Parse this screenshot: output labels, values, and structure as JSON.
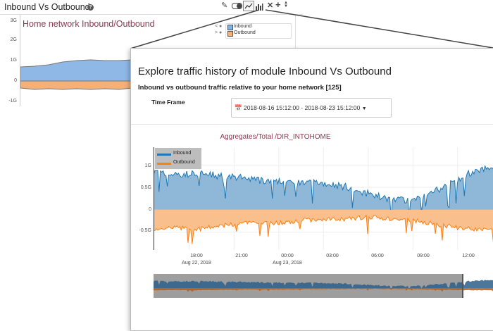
{
  "widget": {
    "title": "Inbound Vs Outbound",
    "toolbar_icons": [
      "pencil-icon",
      "toggle-icon",
      "line-chart-icon",
      "bar-chart-icon",
      "close-icon",
      "plus-icon",
      "sort-icon"
    ]
  },
  "background_chart": {
    "title": "Home network Inbound/Outbound",
    "y_ticks": [
      "3G",
      "2G",
      "1G",
      "0",
      "-1G"
    ],
    "legend": [
      {
        "name": "Inbound",
        "color": "#7fb3e6"
      },
      {
        "name": "Outbound",
        "color": "#f5b077"
      }
    ]
  },
  "overlay": {
    "title": "Explore traffic history of module Inbound Vs Outbound",
    "subtitle": "Inbound vs outbound traffic relative to your home network [125]",
    "time_frame_label": "Time Frame",
    "time_frame_value": "2018-08-16 15:12:00 - 2018-08-23 15:12:00",
    "chart_title": "Aggregates/Total /DIR_INTOHOME"
  },
  "chart_data": {
    "type": "area",
    "title": "Aggregates/Total /DIR_INTOHOME",
    "y_ticks": [
      "1G",
      "0.5G",
      "0",
      "-0.5G"
    ],
    "x_ticks": [
      {
        "label": "18:00",
        "sub": "Aug 22, 2018"
      },
      {
        "label": "21:00",
        "sub": ""
      },
      {
        "label": "00:00",
        "sub": "Aug 23, 2018"
      },
      {
        "label": "03:00",
        "sub": ""
      },
      {
        "label": "06:00",
        "sub": ""
      },
      {
        "label": "09:00",
        "sub": ""
      },
      {
        "label": "12:00",
        "sub": ""
      }
    ],
    "series": [
      {
        "name": "Inbound",
        "color": "#1f77b4",
        "fill": "#8fb8d8"
      },
      {
        "name": "Outbound",
        "color": "#ff7f0e",
        "fill": "#f9c08e"
      }
    ],
    "inbound_profile": [
      0.85,
      0.8,
      0.78,
      0.8,
      0.82,
      0.8,
      0.76,
      0.74,
      0.72,
      0.68,
      0.66,
      0.64,
      0.62,
      0.6,
      0.6,
      0.62,
      0.58,
      0.55,
      0.5,
      0.42,
      0.35,
      0.28,
      0.24,
      0.22,
      0.26,
      0.32,
      0.42,
      0.55,
      0.68,
      0.8,
      0.9,
      0.95,
      1.0,
      1.05
    ],
    "outbound_profile": [
      -0.45,
      -0.42,
      -0.4,
      -0.42,
      -0.44,
      -0.4,
      -0.36,
      -0.34,
      -0.3,
      -0.3,
      -0.28,
      -0.3,
      -0.28,
      -0.26,
      -0.22,
      -0.24,
      -0.2,
      -0.22,
      -0.2,
      -0.18,
      -0.16,
      -0.18,
      -0.2,
      -0.22,
      -0.24,
      -0.28,
      -0.32,
      -0.36,
      -0.4,
      -0.42,
      -0.44,
      -0.46,
      -0.46,
      -0.48
    ],
    "ylim": [
      -0.9,
      1.4
    ],
    "grid": true,
    "legend_position": "top-left"
  }
}
